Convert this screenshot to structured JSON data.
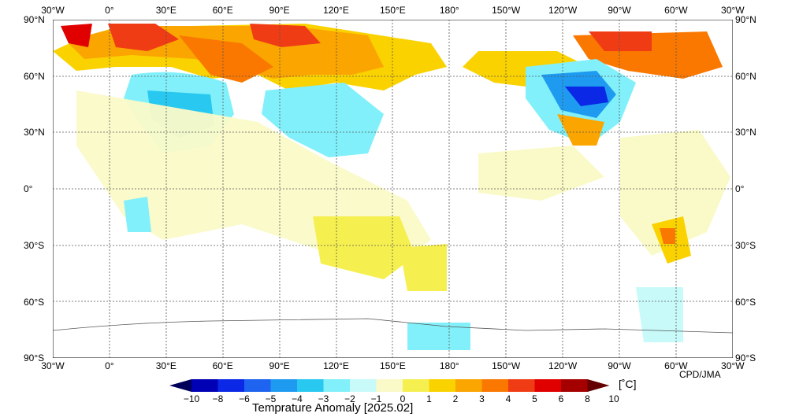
{
  "map": {
    "lon_labels": [
      "30°W",
      "0°",
      "30°E",
      "60°E",
      "90°E",
      "120°E",
      "150°E",
      "180°",
      "150°W",
      "120°W",
      "90°W",
      "60°W",
      "30°W"
    ],
    "lat_labels": [
      "90°N",
      "60°N",
      "30°N",
      "0°",
      "30°S",
      "60°S",
      "90°S"
    ],
    "credit": "CPD/JMA"
  },
  "colorbar": {
    "title": "Temprature Anomaly [2025.02]",
    "unit": "[˚C]",
    "ticks": [
      "−10",
      "−8",
      "−6",
      "−5",
      "−4",
      "−3",
      "−2",
      "−1",
      "0",
      "1",
      "2",
      "3",
      "4",
      "5",
      "6",
      "8",
      "10"
    ],
    "colors": [
      "#00005a",
      "#0000b4",
      "#0a28e6",
      "#1e64f0",
      "#1e9bf0",
      "#28c8f0",
      "#82f0fa",
      "#c8fafa",
      "#fafac8",
      "#f5f050",
      "#fad200",
      "#faa500",
      "#fa7800",
      "#f03c14",
      "#e10000",
      "#a50000",
      "#640000"
    ]
  }
}
